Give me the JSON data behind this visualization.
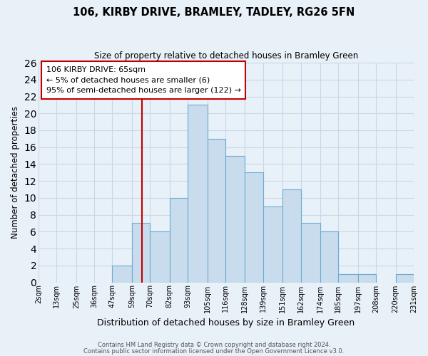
{
  "title": "106, KIRBY DRIVE, BRAMLEY, TADLEY, RG26 5FN",
  "subtitle": "Size of property relative to detached houses in Bramley Green",
  "xlabel": "Distribution of detached houses by size in Bramley Green",
  "ylabel": "Number of detached properties",
  "bar_edges": [
    2,
    13,
    25,
    36,
    47,
    59,
    70,
    82,
    93,
    105,
    116,
    128,
    139,
    151,
    162,
    174,
    185,
    197,
    208,
    220,
    231
  ],
  "bar_heights": [
    0,
    0,
    0,
    0,
    2,
    7,
    6,
    10,
    21,
    17,
    15,
    13,
    9,
    11,
    7,
    6,
    1,
    1,
    0,
    1
  ],
  "bar_color": "#c9dced",
  "bar_edge_color": "#6aabd2",
  "tick_labels": [
    "2sqm",
    "13sqm",
    "25sqm",
    "36sqm",
    "47sqm",
    "59sqm",
    "70sqm",
    "82sqm",
    "93sqm",
    "105sqm",
    "116sqm",
    "128sqm",
    "139sqm",
    "151sqm",
    "162sqm",
    "174sqm",
    "185sqm",
    "197sqm",
    "208sqm",
    "220sqm",
    "231sqm"
  ],
  "ylim": [
    0,
    26
  ],
  "yticks": [
    0,
    2,
    4,
    6,
    8,
    10,
    12,
    14,
    16,
    18,
    20,
    22,
    24,
    26
  ],
  "property_line_x": 65,
  "property_line_color": "#c00000",
  "annotation_title": "106 KIRBY DRIVE: 65sqm",
  "annotation_line1": "← 5% of detached houses are smaller (6)",
  "annotation_line2": "95% of semi-detached houses are larger (122) →",
  "annotation_box_color": "#c00000",
  "footer1": "Contains HM Land Registry data © Crown copyright and database right 2024.",
  "footer2": "Contains public sector information licensed under the Open Government Licence v3.0.",
  "background_color": "#e8f0f8",
  "plot_bg_color": "#e8f0f8",
  "grid_color": "#c8d8e8"
}
